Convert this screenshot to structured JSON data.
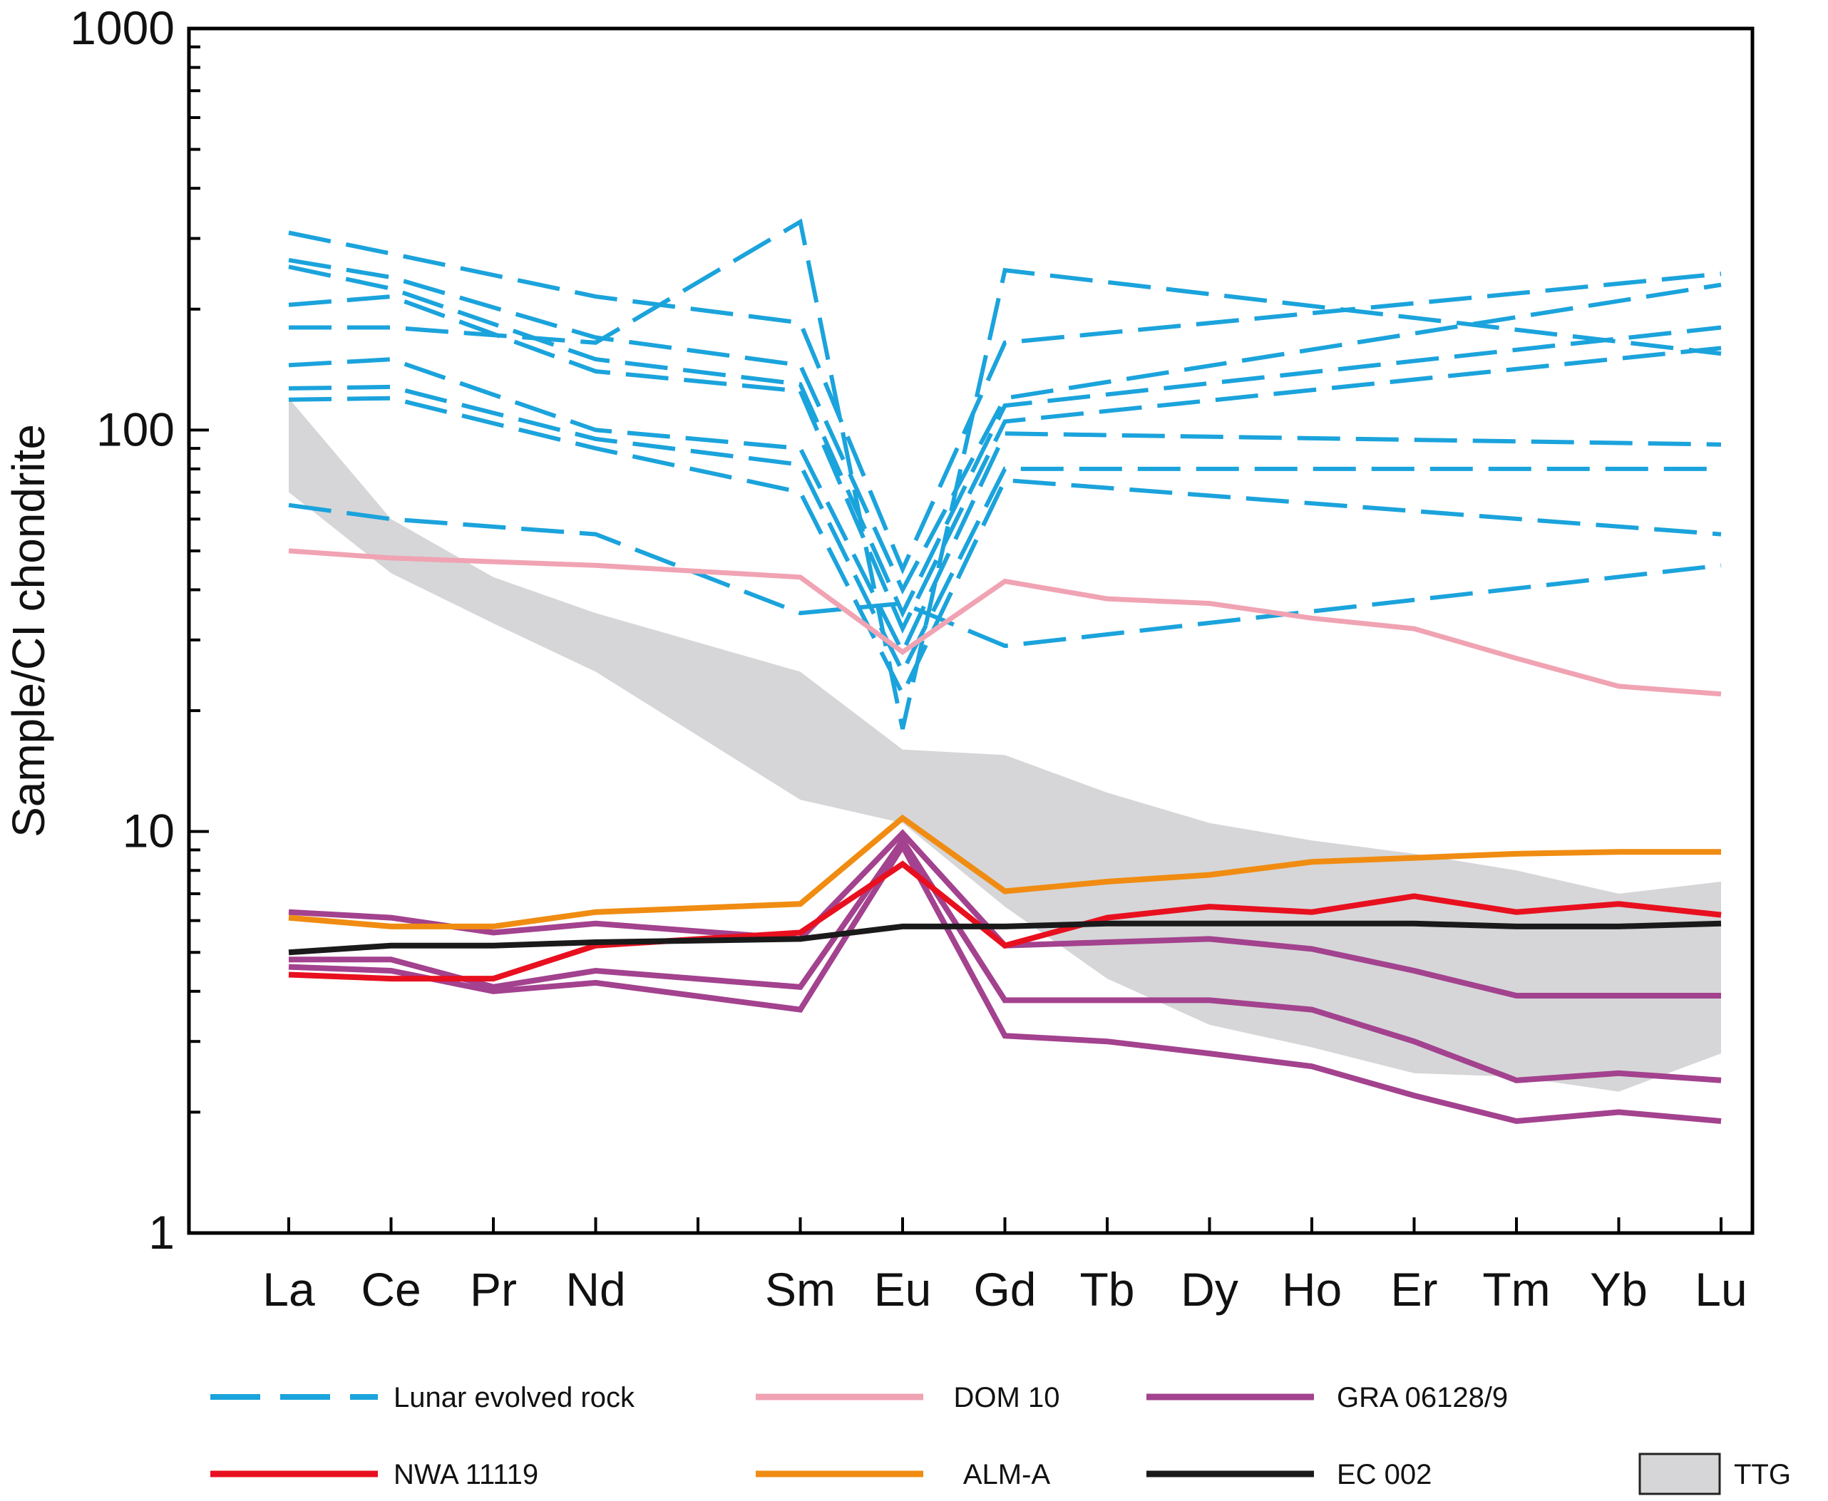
{
  "chart_data": {
    "type": "line",
    "title": "",
    "xlabel": "",
    "ylabel": "Sample/CI chondrite",
    "yscale": "log",
    "ylim": [
      1,
      1000
    ],
    "yticks": [
      1,
      10,
      100,
      1000
    ],
    "ytick_labels": [
      "1",
      "10",
      "100",
      "1000"
    ],
    "xlim": [
      0,
      14
    ],
    "categories": [
      "La",
      "Ce",
      "Pr",
      "Nd",
      "Sm",
      "Eu",
      "Gd",
      "Tb",
      "Dy",
      "Ho",
      "Er",
      "Tm",
      "Yb",
      "Lu"
    ],
    "x": [
      0,
      1,
      2,
      3,
      5,
      6,
      7,
      8,
      9,
      10,
      11,
      12,
      13,
      14
    ],
    "xticks": [
      0,
      1,
      2,
      3,
      4,
      5,
      6,
      7,
      8,
      9,
      10,
      11,
      12,
      13,
      14
    ],
    "lunar_x": [
      0,
      1,
      3,
      5,
      6,
      7,
      14
    ],
    "series": [
      {
        "name": "Lunar evolved rock",
        "group": "lunar",
        "color": "#1ba3dc",
        "style": "dashed",
        "x": [
          0,
          1,
          3,
          5,
          6,
          7,
          14
        ],
        "values": [
          310,
          275,
          215,
          185,
          45,
          165,
          245
        ]
      },
      {
        "name": "Lunar evolved rock",
        "group": "lunar",
        "color": "#1ba3dc",
        "style": "dashed",
        "x": [
          0,
          1,
          3,
          5,
          6,
          7,
          14
        ],
        "values": [
          265,
          240,
          170,
          145,
          40,
          120,
          230
        ]
      },
      {
        "name": "Lunar evolved rock",
        "group": "lunar",
        "color": "#1ba3dc",
        "style": "dashed",
        "x": [
          0,
          1,
          3,
          5,
          6,
          7,
          14
        ],
        "values": [
          255,
          225,
          150,
          130,
          35,
          115,
          180
        ]
      },
      {
        "name": "Lunar evolved rock",
        "group": "lunar",
        "color": "#1ba3dc",
        "style": "dashed",
        "x": [
          0,
          1,
          3,
          5,
          6,
          7,
          14
        ],
        "values": [
          205,
          215,
          140,
          125,
          32,
          105,
          160
        ]
      },
      {
        "name": "Lunar evolved rock",
        "group": "lunar",
        "color": "#1ba3dc",
        "style": "dashed",
        "x": [
          0,
          1,
          3,
          5,
          6,
          7,
          14
        ],
        "values": [
          180,
          180,
          165,
          330,
          18,
          250,
          155
        ]
      },
      {
        "name": "Lunar evolved rock",
        "group": "lunar",
        "color": "#1ba3dc",
        "style": "dashed",
        "x": [
          0,
          1,
          3,
          5,
          6,
          7,
          14
        ],
        "values": [
          145,
          150,
          100,
          90,
          28,
          98,
          92
        ]
      },
      {
        "name": "Lunar evolved rock",
        "group": "lunar",
        "color": "#1ba3dc",
        "style": "dashed",
        "x": [
          0,
          1,
          3,
          5,
          6,
          7,
          14
        ],
        "values": [
          127,
          128,
          95,
          82,
          25,
          80,
          80
        ]
      },
      {
        "name": "Lunar evolved rock",
        "group": "lunar",
        "color": "#1ba3dc",
        "style": "dashed",
        "x": [
          0,
          1,
          3,
          5,
          6,
          7,
          14
        ],
        "values": [
          119,
          120,
          90,
          70,
          22,
          75,
          55
        ]
      },
      {
        "name": "Lunar evolved rock",
        "group": "lunar",
        "color": "#1ba3dc",
        "style": "dashed",
        "x": [
          0,
          1,
          3,
          5,
          6,
          7,
          14
        ],
        "values": [
          65,
          60,
          55,
          35,
          37,
          29,
          46
        ]
      },
      {
        "name": "DOM 10",
        "color": "#f0a3b3",
        "style": "solid",
        "values": [
          50,
          48,
          47,
          46,
          43,
          28,
          42,
          38,
          37,
          34,
          32,
          27,
          23,
          22
        ]
      },
      {
        "name": "GRA 06128/9",
        "color": "#a3428e",
        "style": "solid",
        "values": [
          6.3,
          6.1,
          5.6,
          5.9,
          5.4,
          9.9,
          5.2,
          5.3,
          5.4,
          5.1,
          4.5,
          3.9,
          3.9,
          3.9
        ]
      },
      {
        "name": "GRA 06128/9",
        "color": "#a3428e",
        "style": "solid",
        "values": [
          4.8,
          4.8,
          4.1,
          4.5,
          4.1,
          9.5,
          3.8,
          3.8,
          3.8,
          3.6,
          3.0,
          2.4,
          2.5,
          2.4
        ]
      },
      {
        "name": "GRA 06128/9",
        "color": "#a3428e",
        "style": "solid",
        "values": [
          4.6,
          4.5,
          4.0,
          4.2,
          3.6,
          9.2,
          3.1,
          3.0,
          2.8,
          2.6,
          2.2,
          1.9,
          2.0,
          1.9
        ]
      },
      {
        "name": "NWA 11119",
        "color": "#e8101f",
        "style": "solid",
        "values": [
          4.4,
          4.3,
          4.3,
          5.2,
          5.6,
          8.3,
          5.2,
          6.1,
          6.5,
          6.3,
          6.9,
          6.3,
          6.6,
          6.2
        ]
      },
      {
        "name": "ALM-A",
        "color": "#f08c12",
        "style": "solid",
        "values": [
          6.1,
          5.8,
          5.8,
          6.3,
          6.6,
          10.8,
          7.1,
          7.5,
          7.8,
          8.4,
          8.6,
          8.8,
          8.9,
          8.9
        ]
      },
      {
        "name": "EC 002",
        "color": "#1a1a1a",
        "style": "solid",
        "values": [
          5.0,
          5.2,
          5.2,
          5.3,
          5.4,
          5.8,
          5.8,
          5.9,
          5.9,
          5.9,
          5.9,
          5.8,
          5.8,
          5.9
        ]
      }
    ],
    "ttg_field": {
      "name": "TTG",
      "color": "#d6d6d8",
      "upper": [
        120,
        60,
        43,
        35,
        25,
        16,
        15.5,
        12.5,
        10.5,
        9.5,
        8.8,
        8,
        7,
        7.5
      ],
      "lower": [
        70,
        44,
        33,
        25,
        12,
        10.5,
        6.5,
        4.3,
        3.3,
        2.9,
        2.5,
        2.45,
        2.25,
        2.8
      ]
    },
    "legend": [
      {
        "label": "Lunar evolved rock",
        "color": "#1ba3dc",
        "style": "dashed"
      },
      {
        "label": "DOM 10",
        "color": "#f0a3b3",
        "style": "solid"
      },
      {
        "label": "GRA 06128/9",
        "color": "#a3428e",
        "style": "solid"
      },
      {
        "label": "NWA 11119",
        "color": "#e8101f",
        "style": "solid"
      },
      {
        "label": "ALM-A",
        "color": "#f08c12",
        "style": "solid"
      },
      {
        "label": "EC 002",
        "color": "#1a1a1a",
        "style": "solid"
      },
      {
        "label": "TTG",
        "color": "#d6d6d8",
        "style": "patch"
      }
    ],
    "legend_position": "bottom"
  }
}
